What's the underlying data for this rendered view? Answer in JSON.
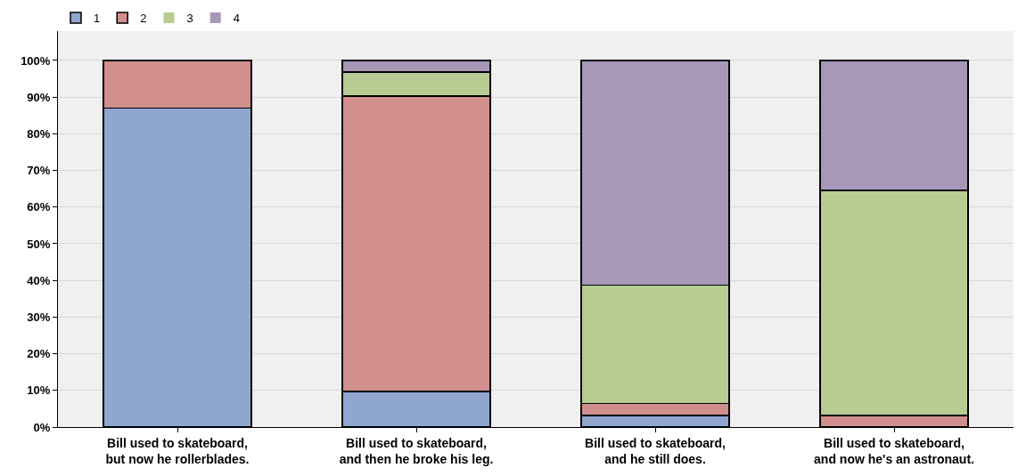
{
  "chart_data": {
    "type": "bar",
    "stacked": true,
    "grid": "y",
    "legend": "top left",
    "categories": [
      "Bill used to skateboard,\nbut now he rollerblades.",
      "Bill used to skateboard,\nand then he broke his leg.",
      "Bill used to skateboard,\nand he still does.",
      "Bill used to skateboard,\nand now he's an astronaut."
    ],
    "series": [
      {
        "name": "1",
        "color": "#8fa6cf",
        "values": [
          87,
          9.7,
          3.2,
          0
        ]
      },
      {
        "name": "2",
        "color": "#d08f8d",
        "values": [
          13,
          80.6,
          3.2,
          3.2
        ]
      },
      {
        "name": "3",
        "color": "#b7cc93",
        "values": [
          0,
          6.5,
          32.3,
          61.3
        ]
      },
      {
        "name": "4",
        "color": "#a898b8",
        "values": [
          0,
          3.2,
          61.3,
          35.5
        ]
      }
    ],
    "ylim": [
      0,
      108
    ],
    "yticks": [
      {
        "value": 0,
        "label": "0%"
      },
      {
        "value": 10,
        "label": "10%"
      },
      {
        "value": 20,
        "label": "20%"
      },
      {
        "value": 30,
        "label": "30%"
      },
      {
        "value": 40,
        "label": "40%"
      },
      {
        "value": 50,
        "label": "50%"
      },
      {
        "value": 60,
        "label": "60%"
      },
      {
        "value": 70,
        "label": "70%"
      },
      {
        "value": 80,
        "label": "80%"
      },
      {
        "value": 90,
        "label": "90%"
      },
      {
        "value": 100,
        "label": "100%"
      }
    ]
  }
}
